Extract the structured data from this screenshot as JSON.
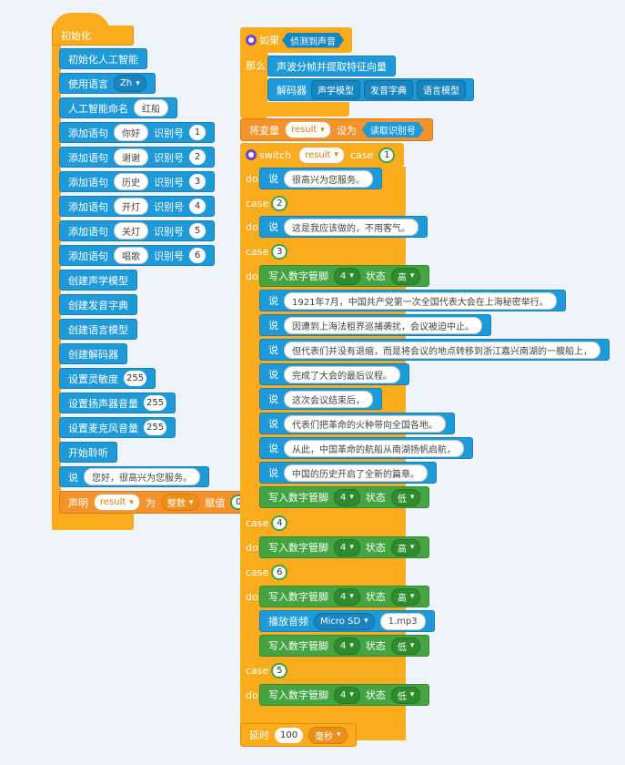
{
  "init": {
    "hat_label": "初始化",
    "blocks": [
      {
        "label": "初始化人工智能"
      },
      {
        "label": "使用语言",
        "dropdown": "Zh"
      },
      {
        "label": "人工智能命名",
        "text": "红船"
      },
      {
        "label": "添加语句",
        "text": "你好",
        "label2": "识别号",
        "num": "1"
      },
      {
        "label": "添加语句",
        "text": "谢谢",
        "label2": "识别号",
        "num": "2"
      },
      {
        "label": "添加语句",
        "text": "历史",
        "label2": "识别号",
        "num": "3"
      },
      {
        "label": "添加语句",
        "text": "开灯",
        "label2": "识别号",
        "num": "4"
      },
      {
        "label": "添加语句",
        "text": "关灯",
        "label2": "识别号",
        "num": "5"
      },
      {
        "label": "添加语句",
        "text": "唱歌",
        "label2": "识别号",
        "num": "6"
      },
      {
        "label": "创建声学模型"
      },
      {
        "label": "创建发音字典"
      },
      {
        "label": "创建语言模型"
      },
      {
        "label": "创建解码器"
      },
      {
        "label": "设置灵敏度",
        "num": "255"
      },
      {
        "label": "设置扬声器音量",
        "num": "255"
      },
      {
        "label": "设置麦克风音量",
        "num": "255"
      },
      {
        "label": "开始聆听"
      },
      {
        "label": "说",
        "text": "您好，很高兴为您服务。"
      }
    ],
    "declare": {
      "label": "声明",
      "var": "result",
      "label2": "为",
      "type": "整数",
      "label3": "赋值",
      "num": "0"
    }
  },
  "main": {
    "if_label": "如果",
    "condition": "侦测到声音",
    "then_label": "那么",
    "extract": "声波分帧并提取特征向量",
    "decoder_label": "解码器",
    "decoder_args": [
      "声学模型",
      "发音字典",
      "语言模型"
    ],
    "setvar": {
      "label": "将变量",
      "var": "result",
      "label2": "设为",
      "value": "读取识别号"
    },
    "switch": {
      "label": "switch",
      "var": "result",
      "case_label": "case",
      "do_label": "do",
      "first_case": "1"
    },
    "say_label": "说",
    "pin_label": "写入数字管脚",
    "pin": "4",
    "state_label": "状态",
    "high": "高",
    "low": "低",
    "say1": "很高兴为您服务。",
    "case2": "2",
    "say2": "这是我应该做的，不用客气。",
    "case3": "3",
    "history": [
      "1921年7月，中国共产党第一次全国代表大会在上海秘密举行。",
      "因遭到上海法租界巡捕袭扰，会议被迫中止。",
      "但代表们并没有退缩，而是将会议的地点转移到浙江嘉兴南湖的一艘船上，",
      "完成了大会的最后议程。",
      "这次会议结束后，",
      "代表们把革命的火种带向全国各地。",
      "从此，中国革命的航船从南湖扬帆启航，",
      "中国的历史开启了全新的篇章。"
    ],
    "case4": "4",
    "case6": "6",
    "play": {
      "label": "播放音频",
      "source": "Micro SD",
      "file": "1.mp3"
    },
    "case5": "5",
    "delay": {
      "label": "延时",
      "num": "100",
      "unit": "毫秒"
    }
  }
}
